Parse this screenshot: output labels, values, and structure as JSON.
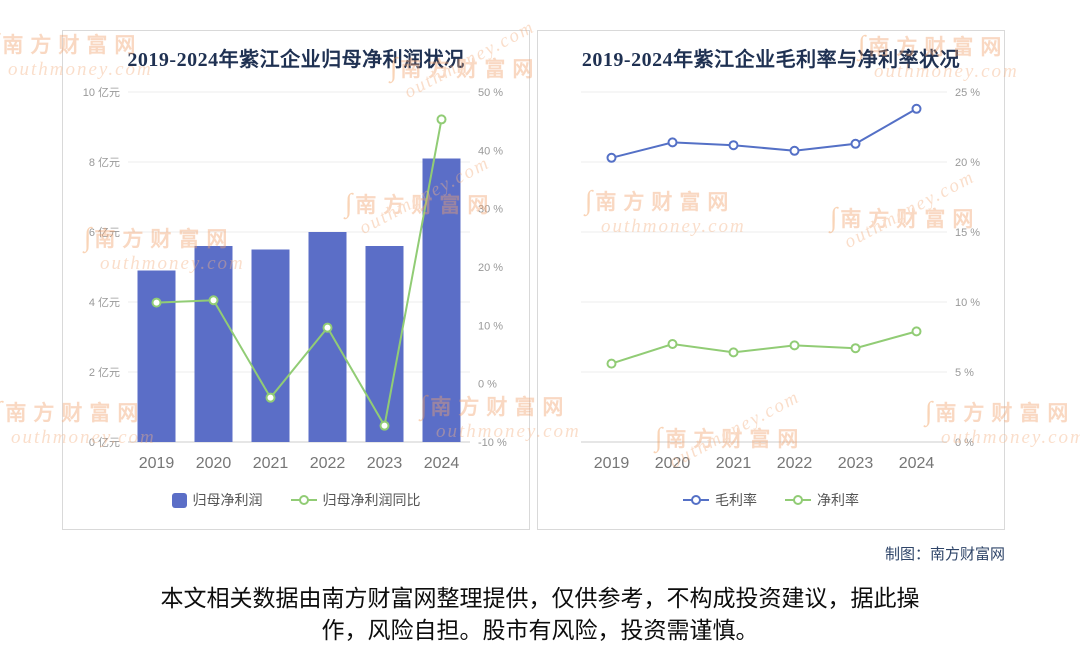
{
  "watermark": {
    "cn": "南方财富网",
    "en": "outhmoney.com"
  },
  "credit": "制图：南方财富网",
  "disclaimer": {
    "line1": "本文相关数据由南方财富网整理提供，仅供参考，不构成投资建议，据此操",
    "line2": "作，风险自担。股市有风险，投资需谨慎。"
  },
  "chart_data": [
    {
      "type": "bar",
      "title": "2019-2024年紫江企业归母净利润状况",
      "categories": [
        "2019",
        "2020",
        "2021",
        "2022",
        "2023",
        "2024"
      ],
      "series": [
        {
          "name": "归母净利润",
          "type": "bar",
          "axis": "left",
          "unit": "亿元",
          "color": "#5b6ec7",
          "values": [
            4.9,
            5.6,
            5.5,
            6.0,
            5.6,
            8.1
          ]
        },
        {
          "name": "归母净利润同比",
          "type": "line",
          "axis": "right",
          "unit": "%",
          "color": "#91cc75",
          "values": [
            13.9,
            14.3,
            -2.4,
            9.6,
            -7.2,
            45.3
          ]
        }
      ],
      "left_axis": {
        "min": 0,
        "max": 10,
        "step": 2,
        "labels": [
          "0 亿元",
          "2 亿元",
          "4 亿元",
          "6 亿元",
          "8 亿元",
          "10 亿元"
        ]
      },
      "right_axis": {
        "min": -10,
        "max": 50,
        "step": 10,
        "labels": [
          "-10 %",
          "0 %",
          "10 %",
          "20 %",
          "30 %",
          "40 %",
          "50 %"
        ]
      },
      "grid": true,
      "legend_position": "bottom"
    },
    {
      "type": "line",
      "title": "2019-2024年紫江企业毛利率与净利率状况",
      "categories": [
        "2019",
        "2020",
        "2021",
        "2022",
        "2023",
        "2024"
      ],
      "series": [
        {
          "name": "毛利率",
          "type": "line",
          "axis": "right",
          "unit": "%",
          "color": "#5470c6",
          "values": [
            20.3,
            21.4,
            21.2,
            20.8,
            21.3,
            23.8
          ]
        },
        {
          "name": "净利率",
          "type": "line",
          "axis": "right",
          "unit": "%",
          "color": "#91cc75",
          "values": [
            5.6,
            7.0,
            6.4,
            6.9,
            6.7,
            7.9
          ]
        }
      ],
      "right_axis": {
        "min": 0,
        "max": 25,
        "step": 5,
        "labels": [
          "0 %",
          "5 %",
          "10 %",
          "15 %",
          "20 %",
          "25 %"
        ]
      },
      "grid": true,
      "legend_position": "bottom"
    }
  ]
}
